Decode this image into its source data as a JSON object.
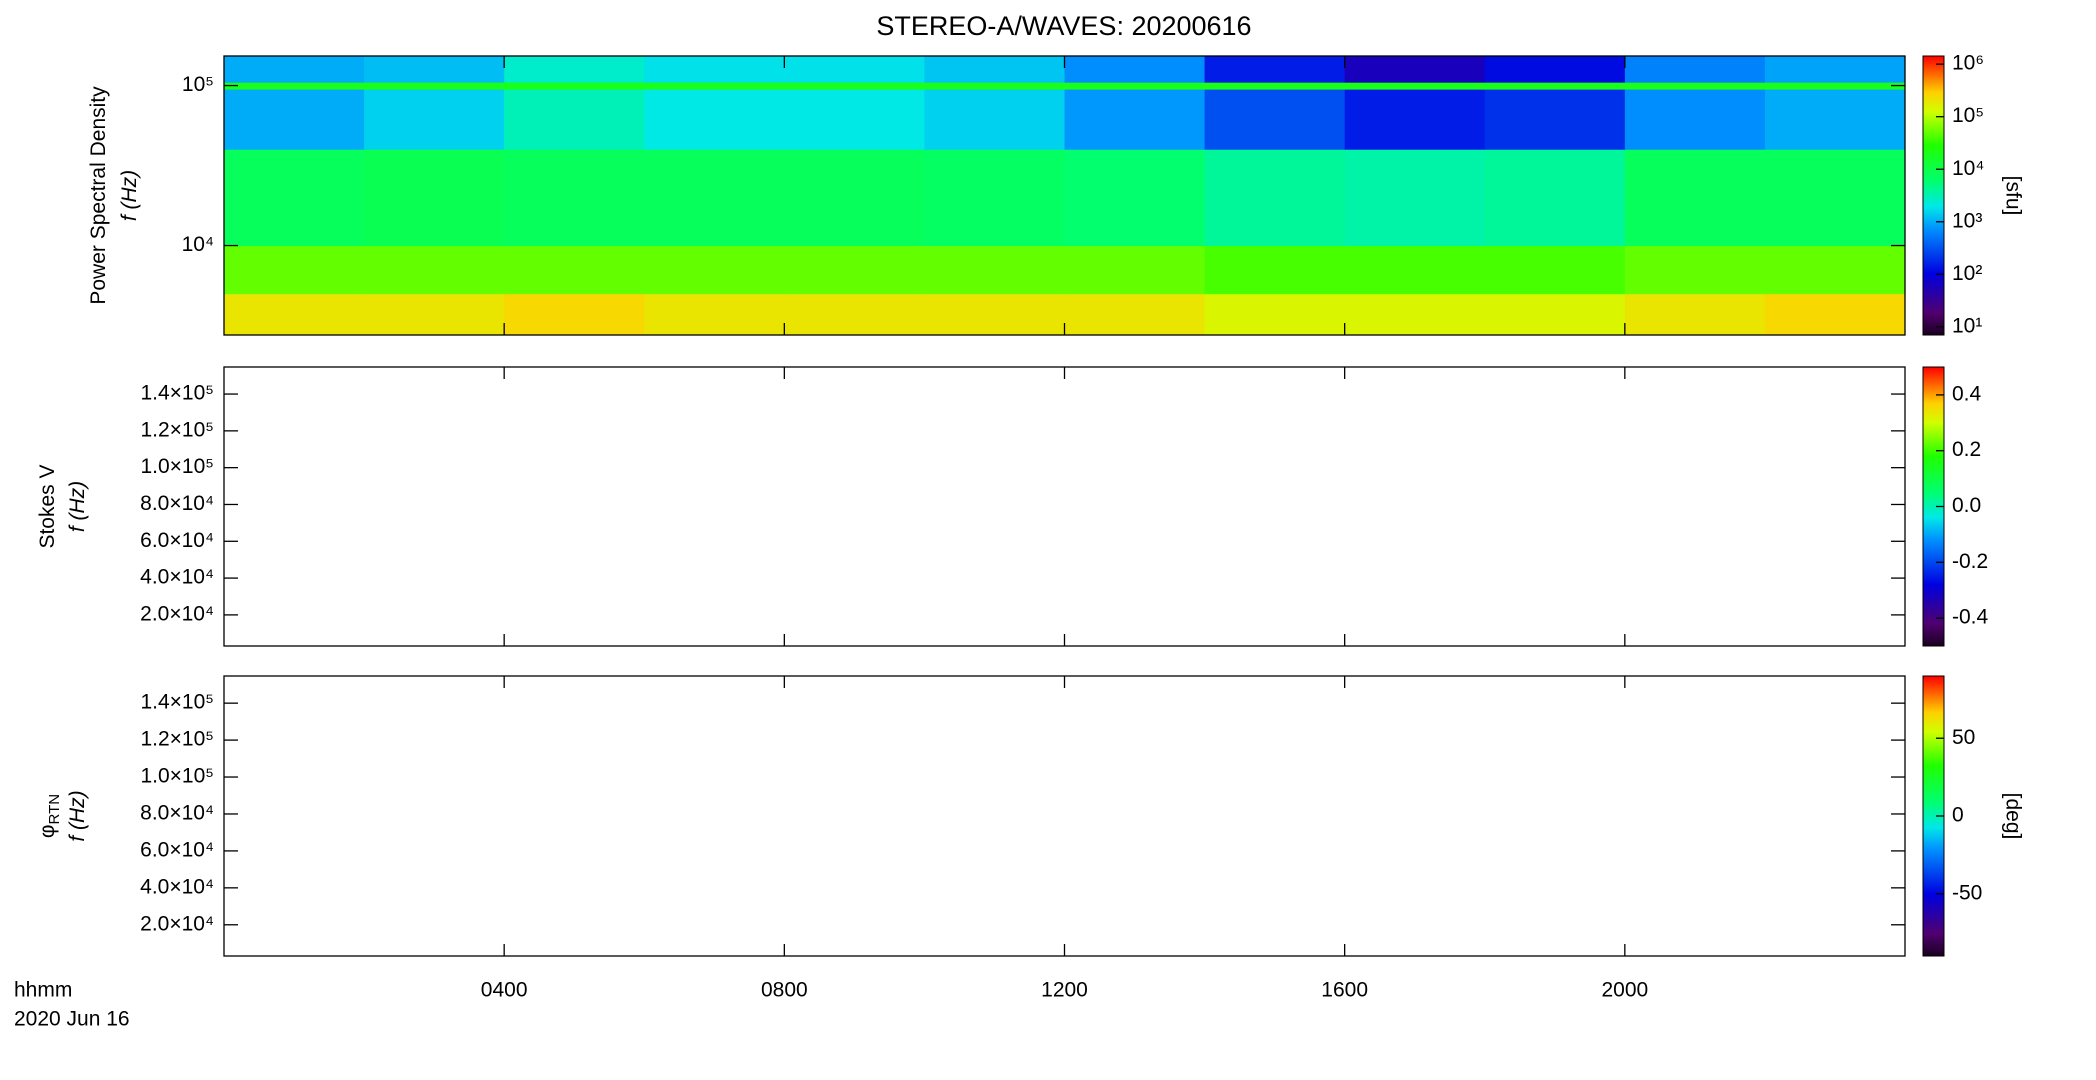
{
  "title": "STEREO-A/WAVES: 20200616",
  "x_label_lines": [
    "hhmm",
    "2020 Jun 16"
  ],
  "xlim": [
    0,
    24
  ],
  "xticks": [
    {
      "value": 4,
      "label": "0400"
    },
    {
      "value": 8,
      "label": "0800"
    },
    {
      "value": 12,
      "label": "1200"
    },
    {
      "value": 16,
      "label": "1600"
    },
    {
      "value": 20,
      "label": "2000"
    }
  ],
  "chart_data": [
    {
      "type": "heatmap",
      "yscale": "log",
      "ylabel_lines": [
        {
          "text": "Power Spectral Density"
        },
        {
          "text": "f (Hz)"
        }
      ],
      "ylim": [
        2760,
        153000
      ],
      "yticks": [
        {
          "value": 10000,
          "label": "10⁴"
        },
        {
          "value": 100000,
          "label": "10⁵"
        }
      ],
      "x_edges": [
        0,
        2,
        4,
        6,
        8,
        10,
        12,
        14,
        16,
        18,
        20,
        22,
        24
      ],
      "y_edges": [
        2760,
        5000,
        10000,
        40000,
        95000,
        105000,
        153000
      ],
      "z": [
        [
          200000,
          200000,
          250000,
          200000,
          200000,
          200000,
          200000,
          150000,
          150000,
          150000,
          200000,
          250000
        ],
        [
          50000,
          50000,
          50000,
          50000,
          50000,
          50000,
          50000,
          40000,
          40000,
          40000,
          50000,
          50000
        ],
        [
          8000,
          9000,
          8000,
          8000,
          8000,
          7000,
          6000,
          4000,
          3500,
          4000,
          8000,
          8000
        ],
        [
          1000,
          1500,
          3000,
          2000,
          2000,
          1500,
          800,
          300,
          150,
          200,
          700,
          1000
        ],
        [
          20000,
          20000,
          20000,
          20000,
          20000,
          20000,
          20000,
          20000,
          20000,
          20000,
          20000,
          20000
        ],
        [
          1000,
          1200,
          2500,
          1800,
          1800,
          1300,
          700,
          150,
          60,
          120,
          600,
          900
        ]
      ],
      "colorbar": {
        "scale": "log",
        "clim": [
          7,
          1430000
        ],
        "label": "[sfu]",
        "ticks": [
          {
            "value": 10,
            "label": "10¹"
          },
          {
            "value": 100,
            "label": "10²"
          },
          {
            "value": 1000,
            "label": "10³"
          },
          {
            "value": 10000,
            "label": "10⁴"
          },
          {
            "value": 100000,
            "label": "10⁵"
          },
          {
            "value": 1000000,
            "label": "10⁶"
          }
        ]
      }
    },
    {
      "type": "heatmap",
      "yscale": "linear",
      "ylabel_lines": [
        {
          "text": "Stokes V"
        },
        {
          "text": "f (Hz)"
        }
      ],
      "ylim": [
        3100,
        154700
      ],
      "yticks": [
        {
          "value": 20000,
          "label": "2.0×10⁴"
        },
        {
          "value": 40000,
          "label": "4.0×10⁴"
        },
        {
          "value": 60000,
          "label": "6.0×10⁴"
        },
        {
          "value": 80000,
          "label": "8.0×10⁴"
        },
        {
          "value": 100000,
          "label": "1.0×10⁵"
        },
        {
          "value": 120000,
          "label": "1.2×10⁵"
        },
        {
          "value": 140000,
          "label": "1.4×10⁵"
        }
      ],
      "colorbar": {
        "scale": "linear",
        "clim": [
          -0.5,
          0.5
        ],
        "ticks": [
          -0.4,
          -0.2,
          {
            "value": 0,
            "label": "0.0"
          },
          0.2,
          0.4
        ]
      }
    },
    {
      "type": "heatmap",
      "yscale": "linear",
      "ylabel_lines": [
        {
          "text": "φ",
          "sub": "RTN"
        },
        {
          "text": "f (Hz)"
        }
      ],
      "ylim": [
        3100,
        154700
      ],
      "yticks": [
        {
          "value": 20000,
          "label": "2.0×10⁴"
        },
        {
          "value": 40000,
          "label": "4.0×10⁴"
        },
        {
          "value": 60000,
          "label": "6.0×10⁴"
        },
        {
          "value": 80000,
          "label": "8.0×10⁴"
        },
        {
          "value": 100000,
          "label": "1.0×10⁵"
        },
        {
          "value": 120000,
          "label": "1.2×10⁵"
        },
        {
          "value": 140000,
          "label": "1.4×10⁵"
        }
      ],
      "colorbar": {
        "scale": "linear",
        "clim": [
          -90,
          90
        ],
        "label": "[deg]",
        "ticks": [
          -50,
          0,
          50
        ]
      }
    }
  ]
}
